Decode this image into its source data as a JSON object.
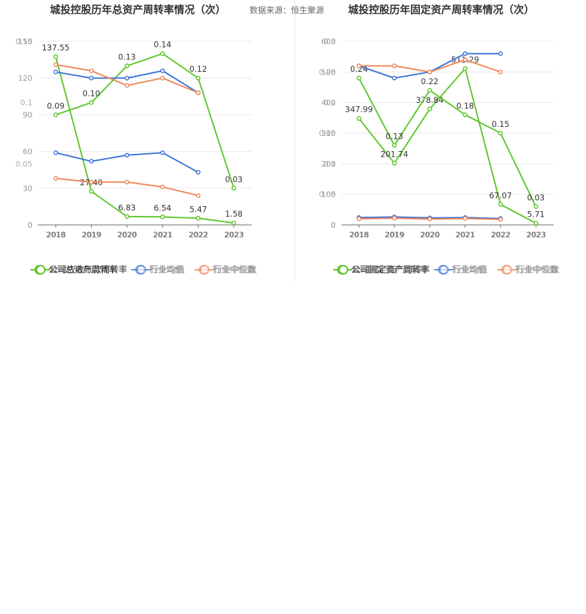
{
  "source_note": "数据来源：恒生聚源",
  "colors": {
    "company": "#5cc72a",
    "industry_avg": "#3d73d9",
    "industry_median": "#f0875a",
    "grid": "#e8e8ee",
    "axis": "#999999",
    "label": "#333333"
  },
  "chart_data": [
    {
      "type": "line",
      "title": "城投控股历年总资产周转率情况（次）",
      "x": [
        "2018",
        "2019",
        "2020",
        "2021",
        "2022",
        "2023"
      ],
      "ylim": [
        0,
        0.15
      ],
      "yticks": [
        "0",
        "0.05",
        "0.1",
        "0.15"
      ],
      "series": [
        {
          "name": "公司总资产周转率",
          "color": "#5cc72a",
          "values": [
            0.09,
            0.1,
            0.13,
            0.14,
            0.12,
            0.03
          ],
          "labels": [
            "0.09",
            "0.10",
            "0.13",
            "0.14",
            "0.12",
            "0.03"
          ]
        },
        {
          "name": "行业均值",
          "color": "#3d73d9",
          "values": [
            0.125,
            0.12,
            0.12,
            0.126,
            0.108,
            null
          ]
        },
        {
          "name": "行业中位数",
          "color": "#f0875a",
          "values": [
            0.131,
            0.126,
            0.114,
            0.12,
            0.108,
            null
          ]
        }
      ],
      "overlay": {
        "ylim": [
          0,
          150
        ],
        "yticks": [
          "0",
          "30",
          "60",
          "90",
          "120",
          "150"
        ],
        "series": [
          {
            "name": "公司应收账款周转率",
            "color": "#5cc72a",
            "values": [
              137.55,
              27.4,
              6.83,
              6.54,
              5.47,
              1.58
            ],
            "labels": [
              "137.55",
              "27.40",
              "6.83",
              "6.54",
              "5.47",
              "1.58"
            ]
          },
          {
            "name": "行业均值",
            "color": "#3d73d9",
            "values": [
              59,
              52,
              57,
              59,
              43,
              null
            ]
          },
          {
            "name": "行业中位数",
            "color": "#f0875a",
            "values": [
              38,
              35,
              35,
              31,
              24,
              null
            ]
          }
        ]
      },
      "legend": [
        "公司总资产周转率",
        "行业均值",
        "行业中位数"
      ],
      "legend_placement": "bottom"
    },
    {
      "type": "line",
      "title": "城投控股历年固定资产周转率情况（次）",
      "x": [
        "2018",
        "2019",
        "2020",
        "2021",
        "2022",
        "2023"
      ],
      "ylim": [
        0,
        0.3
      ],
      "yticks": [
        "0",
        "0.05",
        "0.1",
        "0.15",
        "0.2",
        "0.25",
        "0.3"
      ],
      "series": [
        {
          "name": "公司存货周转率",
          "color": "#5cc72a",
          "values": [
            0.24,
            0.13,
            0.22,
            0.18,
            0.15,
            0.03
          ],
          "labels": [
            "0.24",
            "0.13",
            "0.22",
            "0.18",
            "0.15",
            "0.03"
          ]
        },
        {
          "name": "行业均值",
          "color": "#3d73d9",
          "values": [
            0.26,
            0.24,
            0.25,
            0.28,
            0.28,
            null
          ]
        },
        {
          "name": "行业中位数",
          "color": "#f0875a",
          "values": [
            0.26,
            0.26,
            0.25,
            0.27,
            0.25,
            null
          ]
        }
      ],
      "overlay": {
        "ylim": [
          0,
          600
        ],
        "yticks": [
          "0",
          "100",
          "200",
          "300",
          "400",
          "500",
          "600"
        ],
        "series": [
          {
            "name": "公司固定资产周转率",
            "color": "#5cc72a",
            "values": [
              347.99,
              201.74,
              378.84,
              511.29,
              67.07,
              5.71
            ],
            "labels": [
              "347.99",
              "201.74",
              "378.84",
              "511.29",
              "67.07",
              "5.71"
            ]
          },
          {
            "name": "行业均值",
            "color": "#3d73d9",
            "values": [
              24,
              26,
              23,
              24,
              21,
              null
            ]
          },
          {
            "name": "行业中位数",
            "color": "#f0875a",
            "values": [
              20,
              22,
              19,
              21,
              18,
              null
            ]
          }
        ]
      },
      "legend": [
        "公司固定资产周转率",
        "行业均值",
        "行业中位数"
      ],
      "legend_placement": "bottom"
    }
  ]
}
